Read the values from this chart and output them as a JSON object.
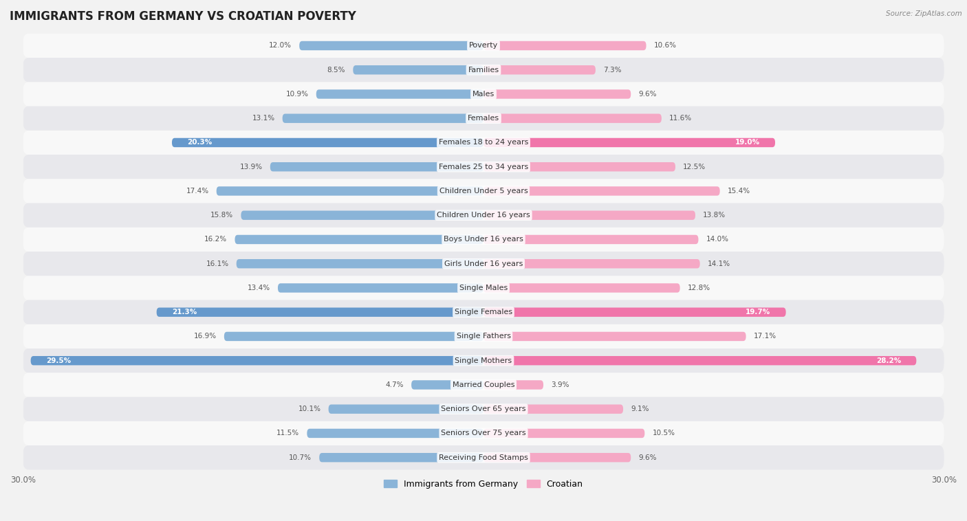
{
  "title": "IMMIGRANTS FROM GERMANY VS CROATIAN POVERTY",
  "source": "Source: ZipAtlas.com",
  "categories": [
    "Poverty",
    "Families",
    "Males",
    "Females",
    "Females 18 to 24 years",
    "Females 25 to 34 years",
    "Children Under 5 years",
    "Children Under 16 years",
    "Boys Under 16 years",
    "Girls Under 16 years",
    "Single Males",
    "Single Females",
    "Single Fathers",
    "Single Mothers",
    "Married Couples",
    "Seniors Over 65 years",
    "Seniors Over 75 years",
    "Receiving Food Stamps"
  ],
  "germany_values": [
    12.0,
    8.5,
    10.9,
    13.1,
    20.3,
    13.9,
    17.4,
    15.8,
    16.2,
    16.1,
    13.4,
    21.3,
    16.9,
    29.5,
    4.7,
    10.1,
    11.5,
    10.7
  ],
  "croatian_values": [
    10.6,
    7.3,
    9.6,
    11.6,
    19.0,
    12.5,
    15.4,
    13.8,
    14.0,
    14.1,
    12.8,
    19.7,
    17.1,
    28.2,
    3.9,
    9.1,
    10.5,
    9.6
  ],
  "germany_color": "#8ab4d8",
  "croatian_color": "#f5a8c5",
  "germany_highlight_color": "#6699cc",
  "croatian_highlight_color": "#f075aa",
  "highlight_rows": [
    4,
    11,
    13
  ],
  "x_max": 30.0,
  "bar_height": 0.38,
  "background_color": "#f0f0f0",
  "row_light": "#f8f8f8",
  "row_dark": "#e8e8ec",
  "legend_germany": "Immigrants from Germany",
  "legend_croatian": "Croatian",
  "title_fontsize": 12,
  "label_fontsize": 8,
  "value_fontsize": 7.5,
  "axis_label_fontsize": 8.5
}
